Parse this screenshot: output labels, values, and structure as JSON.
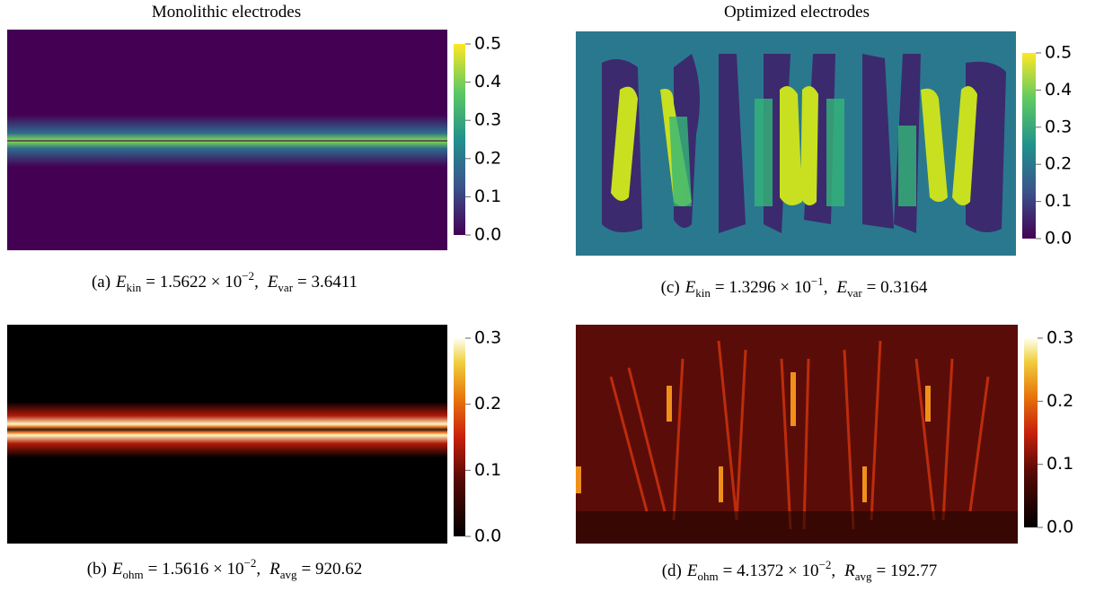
{
  "columns": [
    "Monolithic electrodes",
    "Optimized electrodes"
  ],
  "panels": [
    {
      "label": "(a)",
      "colormap": "viridis",
      "terms": [
        {
          "symbol": "E",
          "sub": "kin",
          "rest": "= 1.5622 × 10",
          "sup": "−2",
          "sep": ","
        },
        {
          "symbol": "E",
          "sub": "var",
          "rest": "= 3.6411"
        }
      ],
      "colorbar": {
        "range": [
          0,
          0.5
        ],
        "ticks": [
          {
            "value": 0,
            "label": "0.0"
          },
          0.1,
          0.2,
          0.3,
          0.4,
          0.5
        ]
      }
    },
    {
      "label": "(b)",
      "colormap": "blackbody",
      "terms": [
        {
          "symbol": "E",
          "sub": "ohm",
          "rest": "= 1.5616 × 10",
          "sup": "−2",
          "sep": ","
        },
        {
          "symbol": "R",
          "sub": "avg",
          "rest": "= 920.62"
        }
      ],
      "colorbar": {
        "range": [
          0,
          0.3
        ],
        "ticks": [
          {
            "value": 0,
            "label": "0.0"
          },
          0.1,
          0.2,
          0.3
        ]
      }
    },
    {
      "label": "(c)",
      "colormap": "viridis",
      "terms": [
        {
          "symbol": "E",
          "sub": "kin",
          "rest": "= 1.3296 × 10",
          "sup": "−1",
          "sep": ","
        },
        {
          "symbol": "E",
          "sub": "var",
          "rest": "= 0.3164"
        }
      ],
      "colorbar": {
        "range": [
          0,
          0.5
        ],
        "ticks": [
          {
            "value": 0,
            "label": "0.0"
          },
          0.1,
          0.2,
          0.3,
          0.4,
          0.5
        ]
      }
    },
    {
      "label": "(d)",
      "colormap": "blackbody",
      "terms": [
        {
          "symbol": "E",
          "sub": "ohm",
          "rest": "= 4.1372 × 10",
          "sup": "−2",
          "sep": ","
        },
        {
          "symbol": "R",
          "sub": "avg",
          "rest": "= 192.77"
        }
      ],
      "colorbar": {
        "range": [
          0,
          0.3
        ],
        "ticks": [
          {
            "value": 0,
            "label": "0.0"
          },
          0.1,
          0.2,
          0.3
        ]
      }
    }
  ]
}
